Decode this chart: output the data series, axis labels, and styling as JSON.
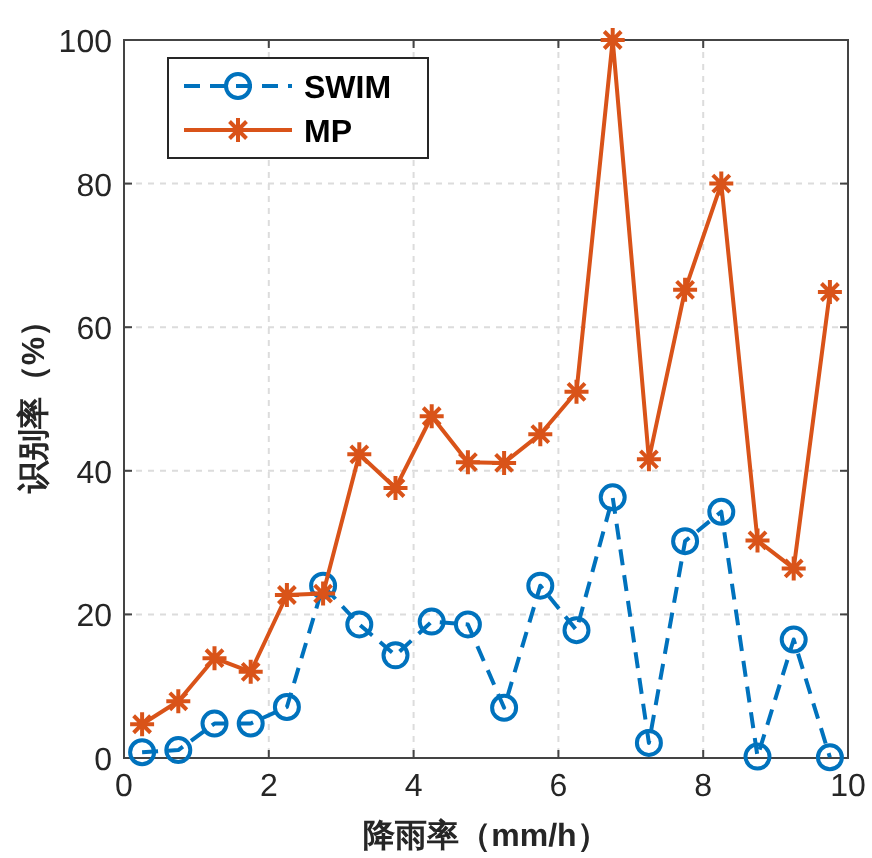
{
  "chart_data": {
    "type": "line",
    "xlabel": "降雨率（mm/h）",
    "ylabel": "识别率（%）",
    "x": [
      0.25,
      0.75,
      1.25,
      1.75,
      2.25,
      2.75,
      3.25,
      3.75,
      4.25,
      4.75,
      5.25,
      5.75,
      6.25,
      6.75,
      7.25,
      7.75,
      8.25,
      8.75,
      9.25,
      9.75
    ],
    "series": [
      {
        "name": "SWIM",
        "color": "#0072bd",
        "marker": "circle",
        "line_style": "dashed",
        "values": [
          0.8,
          1.1,
          4.8,
          4.8,
          7.1,
          24,
          18.6,
          14.3,
          19,
          18.6,
          7,
          24,
          17.8,
          36.3,
          2.1,
          30.2,
          34.3,
          0.2,
          16.5,
          0.1
        ]
      },
      {
        "name": "MP",
        "color": "#d95319",
        "marker": "cross",
        "line_style": "solid",
        "values": [
          4.7,
          7.9,
          13.9,
          12,
          22.7,
          22.9,
          42.3,
          37.6,
          47.6,
          41.2,
          41.1,
          45.1,
          51,
          100,
          41.6,
          65.2,
          80,
          30.3,
          26.4,
          64.9
        ]
      }
    ],
    "xlim": [
      0,
      10
    ],
    "ylim": [
      0,
      100
    ],
    "xticks": [
      0,
      2,
      4,
      6,
      8,
      10
    ],
    "yticks": [
      0,
      20,
      40,
      60,
      80,
      100
    ],
    "grid": true,
    "legend": "top left"
  }
}
